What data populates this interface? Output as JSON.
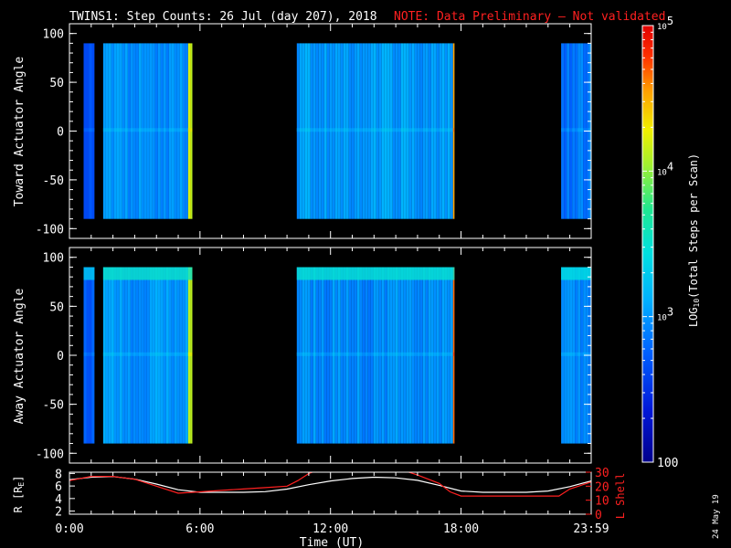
{
  "header": {
    "title": "TWINS1: Step Counts: 26 Jul (day 207), 2018",
    "note": "NOTE: Data Preliminary — Not validated",
    "note_color": "#ff2020"
  },
  "stamp": "24 May 19",
  "chart_data": [
    {
      "type": "heatmap",
      "panel": "toward",
      "ylabel": "Toward Actuator Angle",
      "ylim": [
        -110,
        110
      ],
      "yticks": [
        "100",
        "50",
        "0",
        "-50",
        "-100"
      ],
      "ytick_values": [
        100,
        50,
        0,
        -50,
        -100
      ],
      "data_angle_range": [
        -90,
        90
      ],
      "time_range_hours": [
        0,
        23.983
      ],
      "data_blocks": [
        {
          "start": 0.65,
          "end": 1.15,
          "level": 0.22
        },
        {
          "start": 1.55,
          "end": 5.65,
          "level": 0.32,
          "edge_end": 5.45,
          "edge_level": 0.72
        },
        {
          "start": 10.45,
          "end": 17.7,
          "level": 0.34,
          "edge_end": 17.55,
          "edge_level": 0.85
        },
        {
          "start": 22.6,
          "end": 23.983,
          "level": 0.28
        }
      ]
    },
    {
      "type": "heatmap",
      "panel": "away",
      "ylabel": "Away Actuator Angle",
      "ylim": [
        -110,
        110
      ],
      "yticks": [
        "100",
        "50",
        "0",
        "-50",
        "-100"
      ],
      "ytick_values": [
        100,
        50,
        0,
        -50,
        -100
      ],
      "data_angle_range": [
        -90,
        90
      ],
      "time_range_hours": [
        0,
        23.983
      ],
      "data_blocks": [
        {
          "start": 0.65,
          "end": 1.15,
          "level": 0.25
        },
        {
          "start": 1.55,
          "end": 5.65,
          "level": 0.33,
          "edge_end": 5.45,
          "edge_level": 0.72
        },
        {
          "start": 10.45,
          "end": 17.7,
          "level": 0.32,
          "edge_end": 17.55,
          "edge_level": 0.9
        },
        {
          "start": 22.6,
          "end": 23.983,
          "level": 0.3
        }
      ]
    },
    {
      "type": "line",
      "panel": "orbit",
      "ylabel_left": "R [R",
      "ylabel_left_sub": "E",
      "ylabel_left_end": "]",
      "ylabel_right": "L Shell",
      "left_yticks": [
        "8",
        "6",
        "4",
        "2"
      ],
      "left_ytick_values": [
        8,
        6,
        4,
        2
      ],
      "left_ylim": [
        1.5,
        8.2
      ],
      "right_yticks": [
        "30",
        "20",
        "10",
        "0"
      ],
      "right_ytick_values": [
        30,
        20,
        10,
        0
      ],
      "right_ylim": [
        0,
        30
      ],
      "xlabel": "Time (UT)",
      "xticks": [
        "0:00",
        "6:00",
        "12:00",
        "18:00",
        "23:59"
      ],
      "xtick_values": [
        0,
        6,
        12,
        18,
        23.983
      ],
      "series": [
        {
          "name": "R",
          "color": "#ffffff",
          "x": [
            0,
            1,
            2,
            3,
            4,
            5,
            6,
            7,
            8,
            9,
            10,
            11,
            12,
            13,
            14,
            15,
            16,
            17,
            18,
            19,
            20,
            21,
            22,
            23,
            23.983
          ],
          "y": [
            7.0,
            7.4,
            7.5,
            7.1,
            6.3,
            5.4,
            5.0,
            5.0,
            5.0,
            5.1,
            5.5,
            6.2,
            6.8,
            7.2,
            7.4,
            7.3,
            6.9,
            6.1,
            5.2,
            5.0,
            5.0,
            5.0,
            5.2,
            5.9,
            6.8
          ]
        },
        {
          "name": "L Shell",
          "color": "#ff2020",
          "x": [
            0,
            1,
            2,
            3,
            4,
            5,
            6,
            7,
            8,
            9,
            10,
            10.5,
            11.0,
            11.5,
            15.2,
            16.0,
            17.0,
            17.5,
            18,
            19,
            20,
            21,
            22,
            22.5,
            23,
            23.983
          ],
          "y": [
            24,
            27,
            27,
            25,
            20,
            15,
            16,
            17,
            18,
            19,
            20,
            24,
            29,
            32,
            32,
            28,
            22,
            16,
            13,
            13,
            13,
            13,
            13,
            13,
            18,
            23
          ]
        }
      ]
    },
    {
      "type": "colorbar",
      "label": "LOG",
      "label_sub": "10",
      "label_rest": "(Total Steps per Scan)",
      "tick_labels": [
        {
          "base": "10",
          "exp": "5",
          "value": 100000
        },
        {
          "base": "10",
          "exp": "4",
          "value": 10000
        },
        {
          "base": "10",
          "exp": "3",
          "value": 1000
        },
        {
          "base": "100",
          "exp": "",
          "value": 100
        }
      ],
      "range": [
        100,
        100000
      ]
    }
  ]
}
